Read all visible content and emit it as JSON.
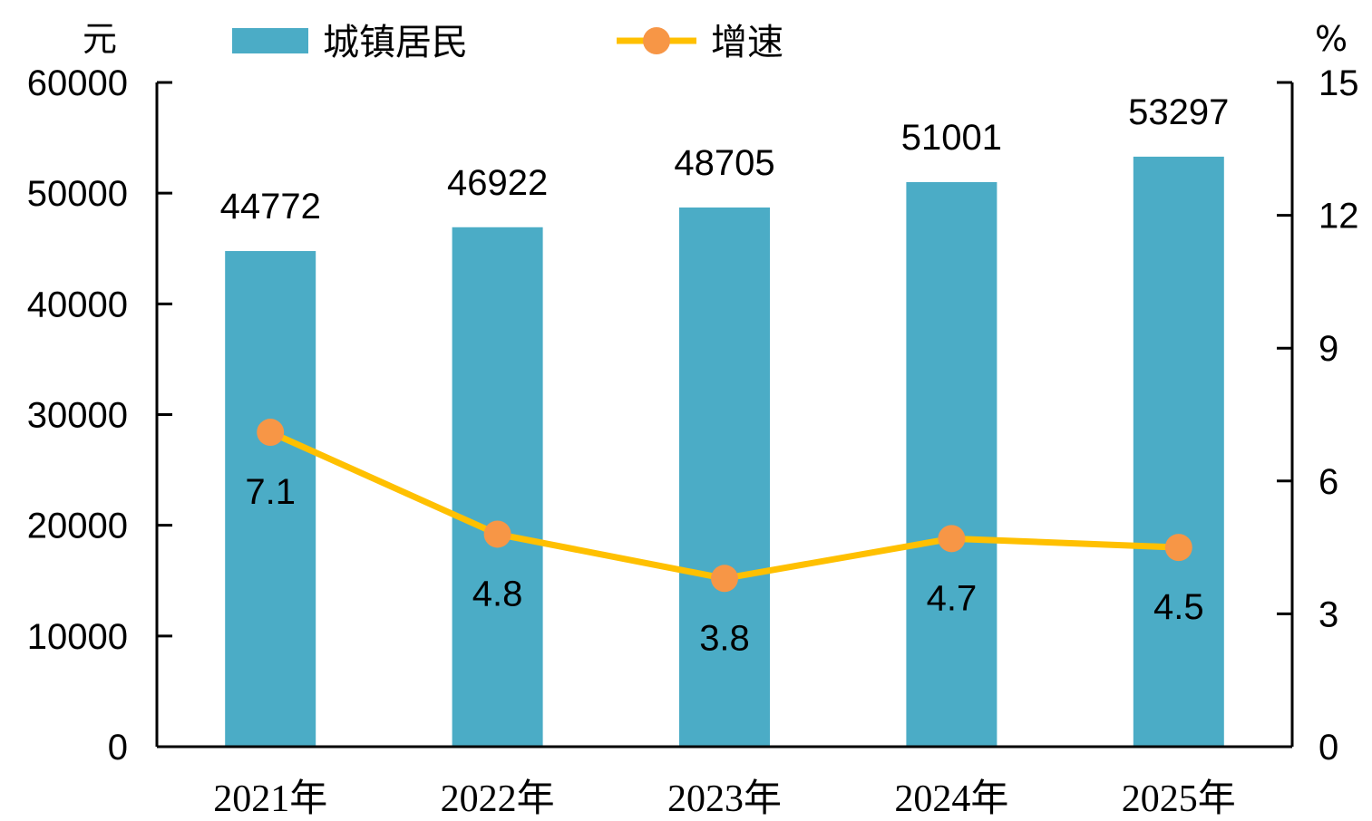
{
  "chart_data": {
    "type": "bar",
    "categories": [
      "2021年",
      "2022年",
      "2023年",
      "2024年",
      "2025年"
    ],
    "series": [
      {
        "name": "城镇居民",
        "type": "bar",
        "axis": "left",
        "color": "#4BACC6",
        "values": [
          44772,
          46922,
          48705,
          51001,
          53297
        ]
      },
      {
        "name": "增速",
        "type": "line",
        "axis": "right",
        "color": "#FFC000",
        "marker_color": "#F79646",
        "values": [
          7.1,
          4.8,
          3.8,
          4.7,
          4.5
        ]
      }
    ],
    "y_left": {
      "unit": "元",
      "ylim": [
        0,
        60000
      ],
      "ticks": [
        "0",
        "10000",
        "20000",
        "30000",
        "40000",
        "50000",
        "60000"
      ]
    },
    "y_right": {
      "unit": "%",
      "ylim": [
        0,
        15
      ],
      "ticks": [
        "0",
        "3",
        "6",
        "9",
        "12",
        "15"
      ]
    },
    "legend_position": "top",
    "grid": false
  }
}
